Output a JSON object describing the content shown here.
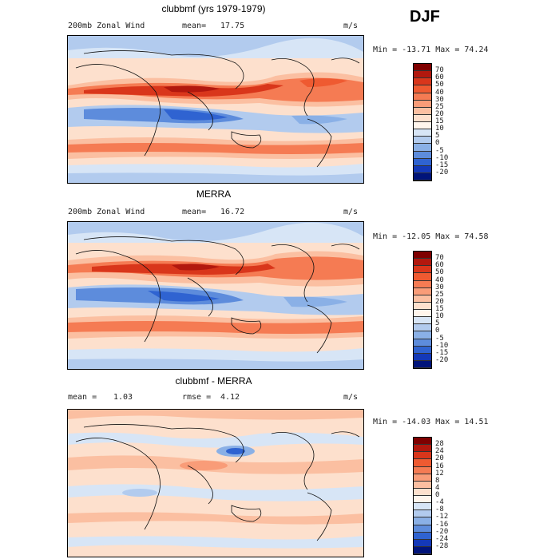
{
  "season": "DJF",
  "panels": [
    {
      "title": "clubbmf (yrs 1979-1979)",
      "left_label": "200mb Zonal Wind",
      "stat_label": "mean=",
      "stat_value": "17.75",
      "stat2_label": "",
      "stat2_value": "",
      "units": "m/s",
      "minmax": "Min = -13.71 Max =  74.24",
      "colorbar": {
        "labels": [
          "70",
          "60",
          "50",
          "40",
          "30",
          "25",
          "20",
          "15",
          "10",
          "5",
          "0",
          "-5",
          "-10",
          "-15",
          "-20"
        ],
        "colors": [
          "#7f0000",
          "#b2180e",
          "#d9361b",
          "#ef5a31",
          "#f57b53",
          "#f99c78",
          "#fbbfa1",
          "#fde0cd",
          "#fff5ec",
          "#d7e5f6",
          "#b2cbee",
          "#8ab0e6",
          "#5d8cdc",
          "#2f63d1",
          "#1439b8",
          "#00147a"
        ]
      }
    },
    {
      "title": "MERRA",
      "left_label": "200mb Zonal Wind",
      "stat_label": "mean=",
      "stat_value": "16.72",
      "stat2_label": "",
      "stat2_value": "",
      "units": "m/s",
      "minmax": "Min = -12.05 Max =  74.58",
      "colorbar": {
        "labels": [
          "70",
          "60",
          "50",
          "40",
          "30",
          "25",
          "20",
          "15",
          "10",
          "5",
          "0",
          "-5",
          "-10",
          "-15",
          "-20"
        ],
        "colors": [
          "#7f0000",
          "#b2180e",
          "#d9361b",
          "#ef5a31",
          "#f57b53",
          "#f99c78",
          "#fbbfa1",
          "#fde0cd",
          "#fff5ec",
          "#d7e5f6",
          "#b2cbee",
          "#8ab0e6",
          "#5d8cdc",
          "#2f63d1",
          "#1439b8",
          "#00147a"
        ]
      }
    },
    {
      "title": "clubbmf - MERRA",
      "left_label": "mean =",
      "stat_label": "",
      "stat_value": "1.03",
      "stat2_label": "rmse =",
      "stat2_value": "4.12",
      "units": "m/s",
      "minmax": "Min = -14.03 Max =  14.51",
      "colorbar": {
        "labels": [
          "28",
          "24",
          "20",
          "16",
          "12",
          "8",
          "4",
          "0",
          "-4",
          "-8",
          "-12",
          "-16",
          "-20",
          "-24",
          "-28"
        ],
        "colors": [
          "#7f0000",
          "#b2180e",
          "#d9361b",
          "#ef5a31",
          "#f57b53",
          "#f99c78",
          "#fbbfa1",
          "#fde0cd",
          "#fff5ec",
          "#d7e5f6",
          "#b2cbee",
          "#8ab0e6",
          "#5d8cdc",
          "#2f63d1",
          "#1439b8",
          "#00147a"
        ]
      }
    }
  ]
}
